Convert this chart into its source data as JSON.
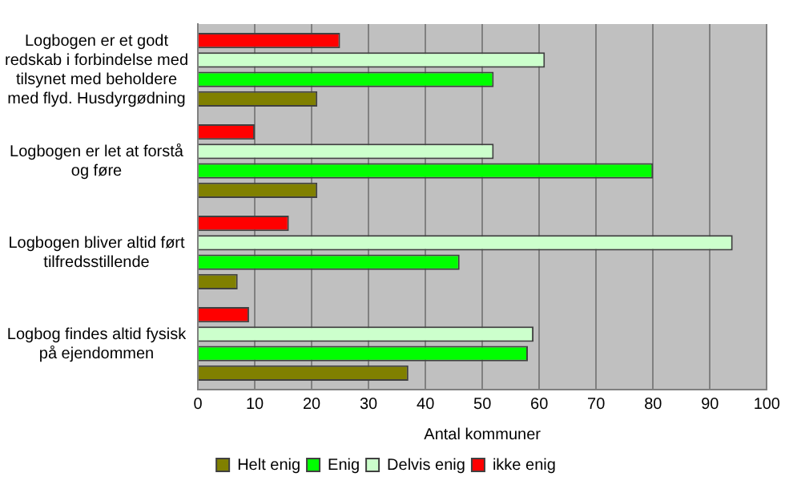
{
  "chart_data": {
    "type": "bar",
    "orientation": "horizontal",
    "xlabel": "Antal kommuner",
    "categories": [
      "Logbogen er et godt redskab i forbindelse med tilsynet med beholdere med flyd. Husdyrgødning",
      "Logbogen er let at forstå og føre",
      "Logbogen bliver altid ført tilfredsstillende",
      "Logbog findes altid fysisk på ejendommen"
    ],
    "series": [
      {
        "name": "Helt enig",
        "color": "#808000",
        "values": [
          21,
          21,
          7,
          37
        ]
      },
      {
        "name": "Enig",
        "color": "#00ff00",
        "values": [
          52,
          80,
          46,
          58
        ]
      },
      {
        "name": "Delvis enig",
        "color": "#ccffcc",
        "values": [
          61,
          52,
          94,
          59
        ]
      },
      {
        "name": "ikke enig",
        "color": "#ff0000",
        "values": [
          25,
          10,
          16,
          9
        ]
      }
    ],
    "xlim": [
      0,
      100
    ],
    "xticks": [
      0,
      10,
      20,
      30,
      40,
      50,
      60,
      70,
      80,
      90,
      100
    ],
    "grid": "x",
    "legend": "bottom"
  }
}
